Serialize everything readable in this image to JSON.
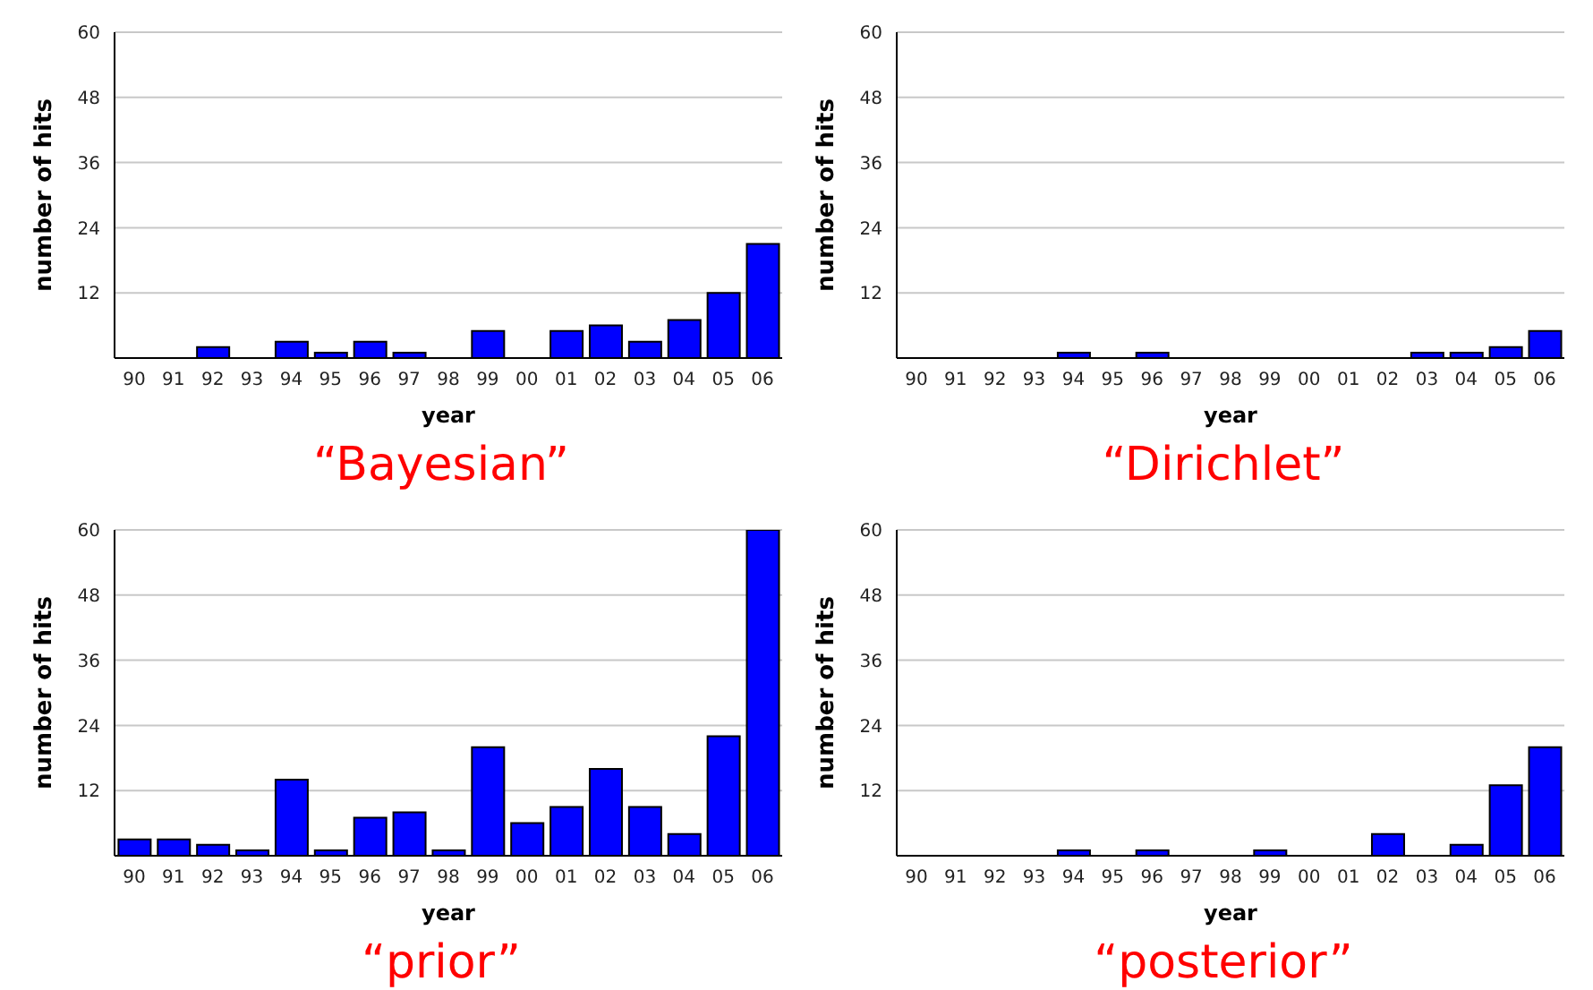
{
  "chart_data": [
    {
      "type": "bar",
      "title": "“Bayesian”",
      "xlabel": "year",
      "ylabel": "number of hits",
      "categories": [
        "90",
        "91",
        "92",
        "93",
        "94",
        "95",
        "96",
        "97",
        "98",
        "99",
        "00",
        "01",
        "02",
        "03",
        "04",
        "05",
        "06"
      ],
      "values": [
        0,
        0,
        2,
        0,
        3,
        1,
        3,
        1,
        0,
        5,
        0,
        5,
        6,
        3,
        7,
        12,
        21
      ],
      "color": "#0000ff",
      "ylim": [
        0,
        60
      ],
      "yticks": [
        12,
        24,
        36,
        48,
        60
      ],
      "grid": "y"
    },
    {
      "type": "bar",
      "title": "“Dirichlet”",
      "xlabel": "year",
      "ylabel": "number of hits",
      "categories": [
        "90",
        "91",
        "92",
        "93",
        "94",
        "95",
        "96",
        "97",
        "98",
        "99",
        "00",
        "01",
        "02",
        "03",
        "04",
        "05",
        "06"
      ],
      "values": [
        0,
        0,
        0,
        0,
        1,
        0,
        1,
        0,
        0,
        0,
        0,
        0,
        0,
        1,
        1,
        2,
        5
      ],
      "color": "#0000ff",
      "ylim": [
        0,
        60
      ],
      "yticks": [
        12,
        24,
        36,
        48,
        60
      ],
      "grid": "y"
    },
    {
      "type": "bar",
      "title": "“prior”",
      "xlabel": "year",
      "ylabel": "number of hits",
      "categories": [
        "90",
        "91",
        "92",
        "93",
        "94",
        "95",
        "96",
        "97",
        "98",
        "99",
        "00",
        "01",
        "02",
        "03",
        "04",
        "05",
        "06"
      ],
      "values": [
        3,
        3,
        2,
        1,
        14,
        1,
        7,
        8,
        1,
        20,
        6,
        9,
        16,
        9,
        4,
        22,
        60
      ],
      "color": "#0000ff",
      "ylim": [
        0,
        60
      ],
      "yticks": [
        12,
        24,
        36,
        48,
        60
      ],
      "grid": "y"
    },
    {
      "type": "bar",
      "title": "“posterior”",
      "xlabel": "year",
      "ylabel": "number of hits",
      "categories": [
        "90",
        "91",
        "92",
        "93",
        "94",
        "95",
        "96",
        "97",
        "98",
        "99",
        "00",
        "01",
        "02",
        "03",
        "04",
        "05",
        "06"
      ],
      "values": [
        0,
        0,
        0,
        0,
        1,
        0,
        1,
        0,
        0,
        1,
        0,
        0,
        4,
        0,
        2,
        13,
        20
      ],
      "color": "#0000ff",
      "ylim": [
        0,
        60
      ],
      "yticks": [
        12,
        24,
        36,
        48,
        60
      ],
      "grid": "y"
    }
  ]
}
